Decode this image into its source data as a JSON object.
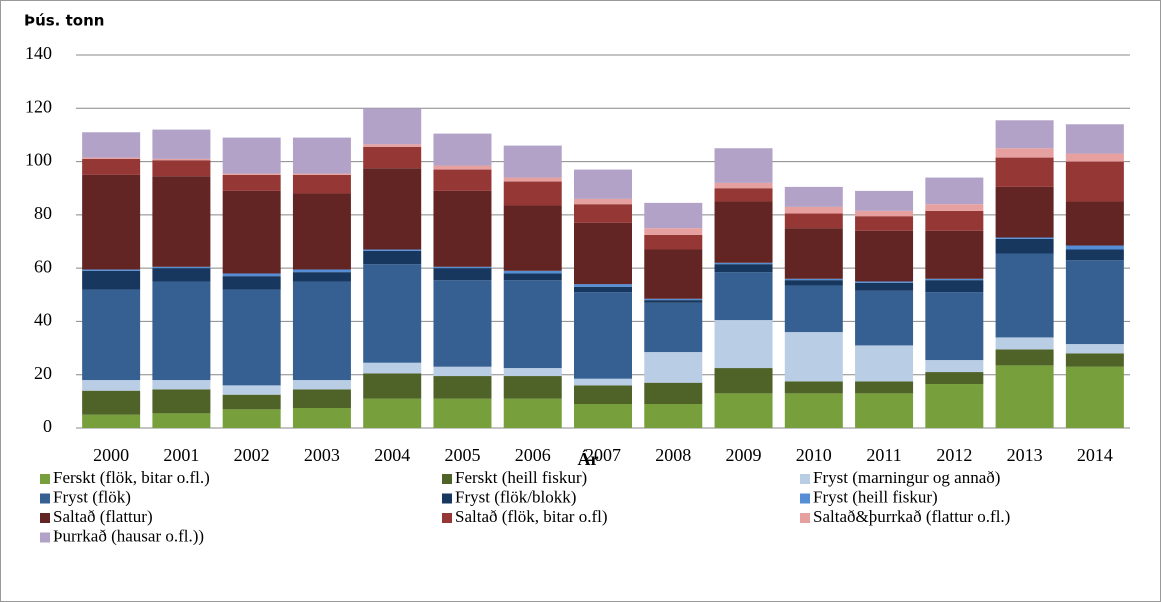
{
  "chart_data": {
    "type": "stacked_bar",
    "title": "Þús. tonn",
    "x_label": "Ár",
    "categories": [
      "2000",
      "2001",
      "2002",
      "2003",
      "2004",
      "2005",
      "2006",
      "2007",
      "2008",
      "2009",
      "2010",
      "2011",
      "2012",
      "2013",
      "2014"
    ],
    "ylim": [
      0,
      140
    ],
    "yticks": [
      0,
      20,
      40,
      60,
      80,
      100,
      120,
      140
    ],
    "grid": true,
    "legend": "bottom",
    "series": [
      {
        "name": "Ferskt (flök, bitar o.fl.)",
        "color": "#77a03c",
        "values": [
          5,
          5.5,
          7,
          7.5,
          11,
          11,
          11,
          9,
          9,
          13,
          13,
          13,
          16.5,
          23.5,
          23
        ]
      },
      {
        "name": "Ferskt (heill fiskur)",
        "color": "#4f6228",
        "values": [
          9,
          9,
          5.5,
          7,
          9.5,
          8.5,
          8.5,
          7,
          8,
          9.5,
          4.5,
          4.5,
          4.5,
          6,
          5
        ]
      },
      {
        "name": "Fryst (marningur og annað)",
        "color": "#b9cde5",
        "values": [
          4,
          3.5,
          3.5,
          3.5,
          4,
          3.5,
          3,
          2.5,
          11.5,
          18,
          18.5,
          13.5,
          4.5,
          4.5,
          3.5
        ]
      },
      {
        "name": "Fryst (flök)",
        "color": "#376092",
        "values": [
          34,
          37,
          36,
          37,
          37,
          32.5,
          33,
          32.5,
          18.5,
          18,
          17.5,
          20.5,
          25.5,
          31.5,
          31.5
        ]
      },
      {
        "name": "Fryst (flök/blokk)",
        "color": "#17375e",
        "values": [
          7,
          5,
          5,
          3.5,
          5,
          4.5,
          2.5,
          2,
          1,
          3,
          2,
          3,
          4.5,
          5.5,
          4
        ]
      },
      {
        "name": "Fryst (heill fiskur)",
        "color": "#558ed5",
        "values": [
          0.5,
          0.5,
          1,
          1,
          0.5,
          0.5,
          1,
          1,
          0.5,
          0.5,
          0.5,
          0.5,
          0.5,
          0.5,
          1.5
        ]
      },
      {
        "name": "Saltað (flattur)",
        "color": "#632523",
        "values": [
          35.5,
          34,
          31,
          28.5,
          30.5,
          28.5,
          24.5,
          23,
          18.5,
          23,
          19,
          19,
          18,
          19,
          16.5
        ]
      },
      {
        "name": "Saltað (flök, bitar o.fl)",
        "color": "#953735",
        "values": [
          6,
          6,
          6,
          7,
          8,
          8,
          9,
          7,
          5.5,
          5,
          5.5,
          5.5,
          7.5,
          11,
          15
        ]
      },
      {
        "name": "Saltað&þurrkað (flattur o.fl.)",
        "color": "#e6a0a0",
        "values": [
          0.5,
          0.5,
          0.5,
          0.5,
          1,
          1.5,
          1.5,
          2,
          2.5,
          2,
          2.5,
          2,
          2.5,
          3.5,
          3
        ]
      },
      {
        "name": "Þurrkað (hausar o.fl.))",
        "color": "#b3a2c7",
        "values": [
          9.5,
          11,
          13.5,
          13.5,
          13.5,
          12,
          12,
          11,
          9.5,
          13,
          7.5,
          7.5,
          10,
          10.5,
          11
        ]
      }
    ]
  }
}
